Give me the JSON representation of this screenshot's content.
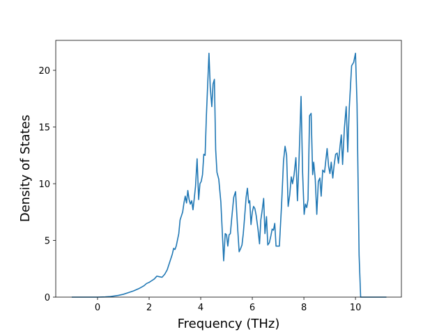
{
  "chart_data": {
    "type": "line",
    "x_label": "Frequency (THz)",
    "y_label": "Density of States",
    "color": "#1f77b4",
    "x": [
      -1,
      -0.5,
      0,
      0.3,
      0.5,
      0.8,
      1.0,
      1.2,
      1.4,
      1.6,
      1.8,
      1.9,
      2.0,
      2.1,
      2.2,
      2.3,
      2.4,
      2.5,
      2.6,
      2.7,
      2.8,
      2.9,
      2.95,
      3.0,
      3.05,
      3.15,
      3.2,
      3.3,
      3.35,
      3.4,
      3.45,
      3.5,
      3.55,
      3.6,
      3.65,
      3.7,
      3.75,
      3.8,
      3.86,
      3.92,
      3.97,
      4.02,
      4.07,
      4.12,
      4.17,
      4.22,
      4.32,
      4.37,
      4.43,
      4.48,
      4.53,
      4.58,
      4.63,
      4.7,
      4.78,
      4.89,
      4.95,
      5.0,
      5.05,
      5.1,
      5.15,
      5.2,
      5.28,
      5.35,
      5.42,
      5.49,
      5.55,
      5.6,
      5.65,
      5.7,
      5.76,
      5.81,
      5.86,
      5.9,
      5.95,
      6.0,
      6.05,
      6.1,
      6.15,
      6.22,
      6.28,
      6.33,
      6.38,
      6.44,
      6.49,
      6.55,
      6.6,
      6.66,
      6.72,
      6.77,
      6.82,
      6.87,
      6.92,
      7.05,
      7.14,
      7.21,
      7.27,
      7.33,
      7.39,
      7.45,
      7.51,
      7.56,
      7.62,
      7.69,
      7.75,
      7.81,
      7.89,
      7.95,
      8.01,
      8.06,
      8.11,
      8.16,
      8.22,
      8.28,
      8.34,
      8.38,
      8.44,
      8.5,
      8.56,
      8.62,
      8.67,
      8.73,
      8.8,
      8.9,
      8.96,
      9.01,
      9.06,
      9.12,
      9.17,
      9.23,
      9.29,
      9.34,
      9.4,
      9.45,
      9.5,
      9.57,
      9.64,
      9.7,
      9.76,
      9.85,
      9.93,
      10.0,
      10.06,
      10.14,
      10.2,
      10.8,
      11.2
    ],
    "values": [
      0,
      0,
      0,
      0.02,
      0.05,
      0.15,
      0.25,
      0.4,
      0.55,
      0.75,
      1.0,
      1.2,
      1.3,
      1.45,
      1.6,
      1.85,
      1.8,
      1.75,
      2.0,
      2.4,
      3.1,
      3.8,
      4.3,
      4.2,
      4.5,
      5.6,
      6.8,
      7.5,
      8.3,
      8.9,
      8.3,
      9.4,
      8.6,
      8.2,
      8.5,
      7.7,
      8.7,
      9.8,
      12.2,
      8.6,
      10.0,
      10.2,
      10.8,
      12.6,
      12.5,
      16.0,
      21.5,
      18.5,
      16.8,
      18.8,
      19.2,
      13.0,
      11.0,
      10.4,
      8.4,
      3.2,
      5.6,
      5.5,
      4.5,
      5.5,
      5.6,
      6.9,
      8.8,
      9.3,
      6.5,
      4.0,
      4.3,
      4.6,
      5.6,
      7.0,
      8.8,
      9.6,
      8.3,
      8.5,
      6.4,
      7.5,
      8.0,
      7.8,
      7.2,
      6.0,
      4.7,
      6.8,
      7.6,
      8.7,
      5.6,
      7.1,
      4.6,
      4.8,
      5.4,
      6.0,
      5.9,
      6.5,
      4.5,
      4.5,
      8.4,
      12.0,
      13.3,
      12.5,
      8.0,
      9.0,
      10.6,
      10.0,
      10.8,
      12.3,
      8.5,
      12.0,
      17.7,
      11.0,
      7.3,
      8.2,
      7.9,
      8.6,
      16.0,
      16.2,
      10.8,
      11.9,
      10.4,
      7.3,
      10.2,
      10.5,
      8.9,
      11.2,
      11.0,
      13.1,
      11.5,
      10.9,
      11.9,
      10.5,
      11.6,
      12.6,
      12.7,
      11.8,
      13.3,
      14.3,
      11.7,
      14.9,
      16.8,
      12.8,
      16.7,
      20.4,
      20.7,
      21.5,
      17.0,
      3.7,
      0,
      0,
      0
    ],
    "xlim": [
      -1.62,
      11.78
    ],
    "ylim": [
      0,
      22.64
    ],
    "xticks": [
      0,
      2,
      4,
      6,
      8,
      10
    ],
    "yticks": [
      0,
      5,
      10,
      15,
      20
    ]
  }
}
